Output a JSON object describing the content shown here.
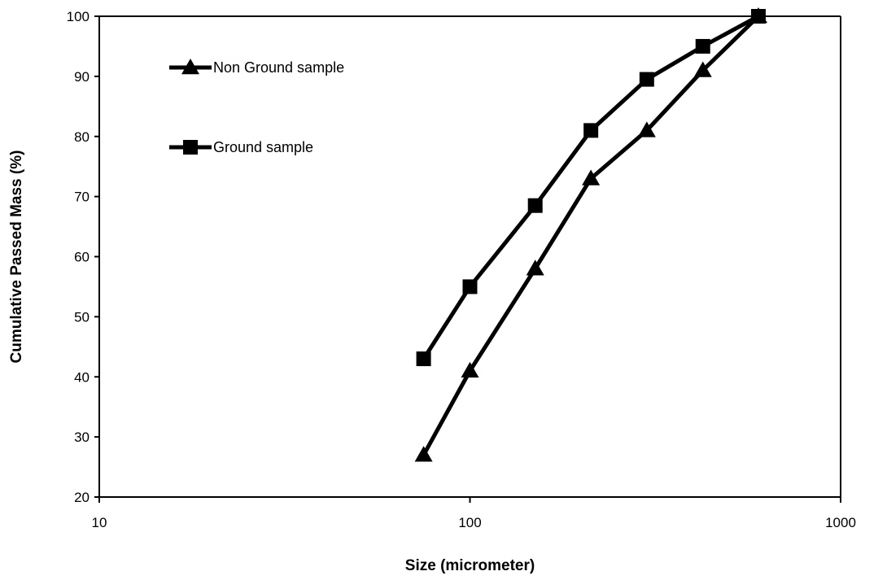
{
  "chart_data": {
    "type": "line",
    "title": "",
    "xlabel": "Size (micrometer)",
    "ylabel": "Cumulative Passed Mass  (%)",
    "xscale": "log",
    "xlim": [
      10,
      1000
    ],
    "ylim": [
      20,
      100
    ],
    "x_ticks": [
      10,
      100,
      1000
    ],
    "x_tick_labels": [
      "10",
      "100",
      "1000"
    ],
    "y_ticks": [
      20,
      30,
      40,
      50,
      60,
      70,
      80,
      90,
      100
    ],
    "y_tick_labels": [
      "20",
      "30",
      "40",
      "50",
      "60",
      "70",
      "80",
      "90",
      "100"
    ],
    "grid": false,
    "legend_position": "top-left",
    "series": [
      {
        "name": "Non Ground sample",
        "marker": "triangle",
        "color": "#000000",
        "x": [
          75,
          100,
          150,
          212,
          300,
          425,
          600
        ],
        "y": [
          27,
          41,
          58,
          73,
          81,
          91,
          100
        ]
      },
      {
        "name": "Ground sample",
        "marker": "square",
        "color": "#000000",
        "x": [
          75,
          100,
          150,
          212,
          300,
          425,
          600
        ],
        "y": [
          43,
          55,
          68.5,
          81,
          89.5,
          95,
          100
        ]
      }
    ]
  }
}
